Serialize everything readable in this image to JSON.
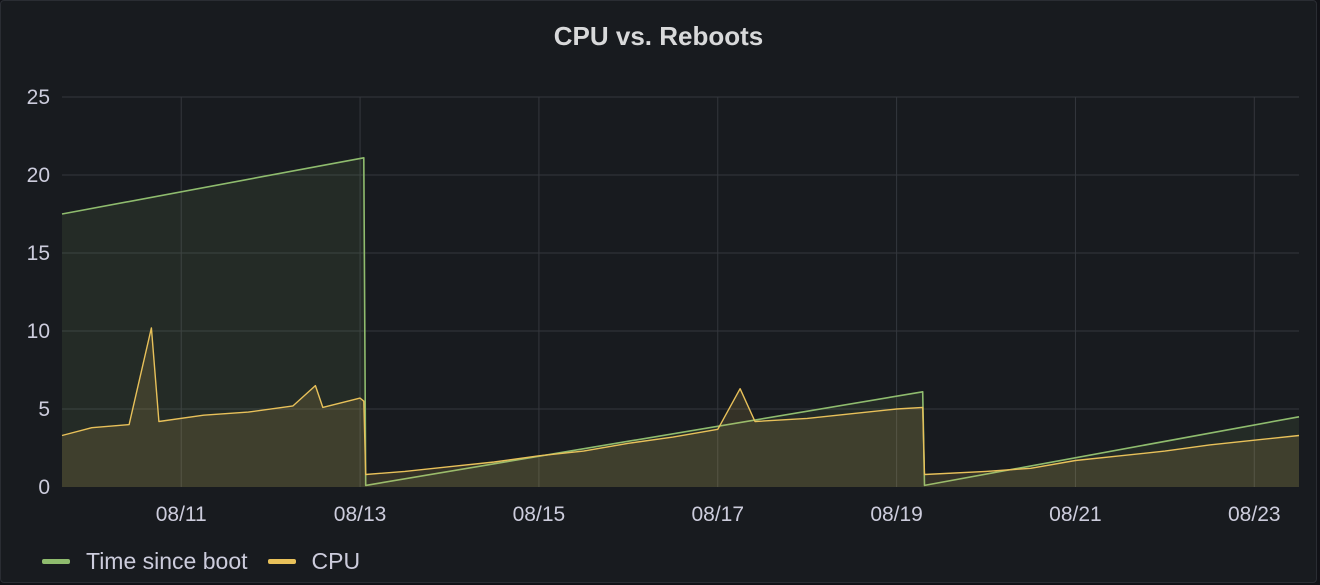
{
  "panel": {
    "title": "CPU vs. Reboots"
  },
  "legend": [
    {
      "label": "Time since boot",
      "color": "#8fbc6e"
    },
    {
      "label": "CPU",
      "color": "#e8c15a"
    }
  ],
  "chart_data": {
    "type": "area",
    "title": "CPU vs. Reboots",
    "x_axis": {
      "type": "date",
      "min": "2024-08-09T16:00",
      "max": "2024-08-23T12:00",
      "ticks": [
        "08/11",
        "08/13",
        "08/15",
        "08/17",
        "08/19",
        "08/21",
        "08/23"
      ]
    },
    "y_axis": {
      "min": 0,
      "max": 25,
      "ticks": [
        0,
        5,
        10,
        15,
        20,
        25
      ]
    },
    "grid": true,
    "legend_position": "bottom-left",
    "series": [
      {
        "name": "Time since boot",
        "color": "#8fbc6e",
        "points": [
          [
            "2024-08-09T16:00",
            17.5
          ],
          [
            "2024-08-13T01:00",
            21.1
          ],
          [
            "2024-08-13T01:30",
            0.1
          ],
          [
            "2024-08-19T07:00",
            6.1
          ],
          [
            "2024-08-19T07:30",
            0.1
          ],
          [
            "2024-08-23T12:00",
            4.5
          ]
        ]
      },
      {
        "name": "CPU",
        "color": "#e8c15a",
        "points": [
          [
            "2024-08-09T16:00",
            3.3
          ],
          [
            "2024-08-10T00:00",
            3.8
          ],
          [
            "2024-08-10T10:00",
            4.0
          ],
          [
            "2024-08-10T16:00",
            10.2
          ],
          [
            "2024-08-10T18:00",
            4.2
          ],
          [
            "2024-08-11T06:00",
            4.6
          ],
          [
            "2024-08-11T18:00",
            4.8
          ],
          [
            "2024-08-12T06:00",
            5.2
          ],
          [
            "2024-08-12T12:00",
            6.5
          ],
          [
            "2024-08-12T14:00",
            5.1
          ],
          [
            "2024-08-13T00:00",
            5.7
          ],
          [
            "2024-08-13T01:00",
            5.5
          ],
          [
            "2024-08-13T01:30",
            0.8
          ],
          [
            "2024-08-13T12:00",
            1.0
          ],
          [
            "2024-08-14T00:00",
            1.3
          ],
          [
            "2024-08-14T12:00",
            1.6
          ],
          [
            "2024-08-15T00:00",
            2.0
          ],
          [
            "2024-08-15T12:00",
            2.3
          ],
          [
            "2024-08-16T00:00",
            2.8
          ],
          [
            "2024-08-16T12:00",
            3.2
          ],
          [
            "2024-08-17T00:00",
            3.7
          ],
          [
            "2024-08-17T06:00",
            6.3
          ],
          [
            "2024-08-17T10:00",
            4.2
          ],
          [
            "2024-08-18T00:00",
            4.4
          ],
          [
            "2024-08-18T12:00",
            4.7
          ],
          [
            "2024-08-19T00:00",
            5.0
          ],
          [
            "2024-08-19T07:00",
            5.1
          ],
          [
            "2024-08-19T07:30",
            0.8
          ],
          [
            "2024-08-20T00:00",
            1.0
          ],
          [
            "2024-08-20T12:00",
            1.2
          ],
          [
            "2024-08-21T00:00",
            1.7
          ],
          [
            "2024-08-21T12:00",
            2.0
          ],
          [
            "2024-08-22T00:00",
            2.3
          ],
          [
            "2024-08-22T12:00",
            2.7
          ],
          [
            "2024-08-23T00:00",
            3.0
          ],
          [
            "2024-08-23T12:00",
            3.3
          ]
        ]
      }
    ]
  }
}
